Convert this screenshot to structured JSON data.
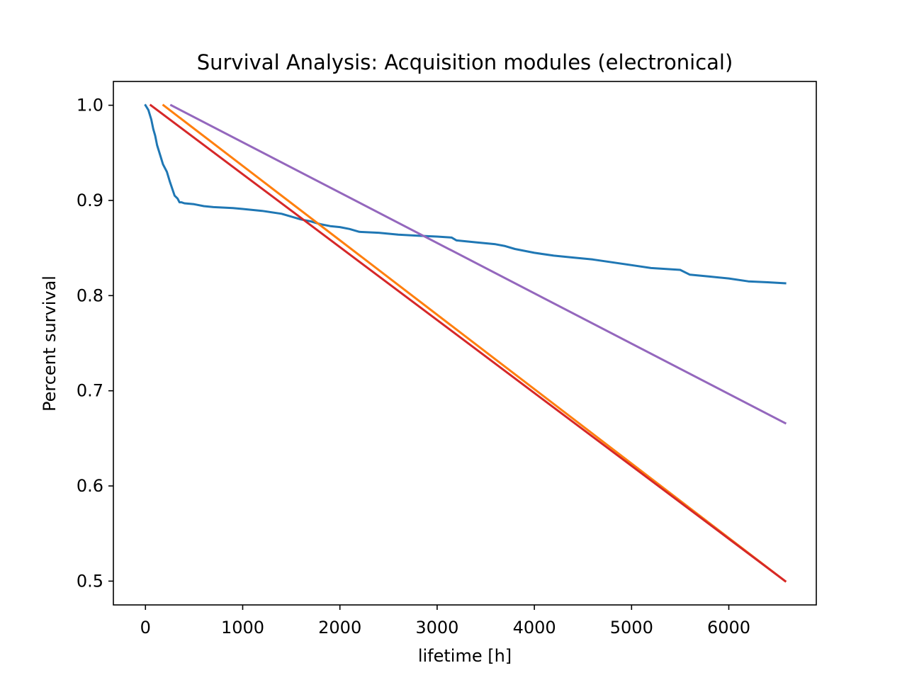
{
  "chart_data": {
    "type": "line",
    "title": "Survival Analysis: Acquisition modules (electronical)",
    "xlabel": "lifetime [h]",
    "ylabel": "Percent survival",
    "xlim": [
      -330,
      6900
    ],
    "ylim": [
      0.475,
      1.025
    ],
    "xticks": [
      0,
      1000,
      2000,
      3000,
      4000,
      5000,
      6000
    ],
    "xtick_labels": [
      "0",
      "1000",
      "2000",
      "3000",
      "4000",
      "5000",
      "6000"
    ],
    "yticks": [
      0.5,
      0.6,
      0.7,
      0.8,
      0.9,
      1.0
    ],
    "ytick_labels": [
      "0.5",
      "0.6",
      "0.7",
      "0.8",
      "0.9",
      "1.0"
    ],
    "grid": false,
    "legend": "none",
    "series": [
      {
        "color": "#1f77b4",
        "x": [
          0,
          30,
          60,
          80,
          100,
          120,
          150,
          180,
          220,
          250,
          300,
          330,
          350,
          370,
          400,
          500,
          600,
          700,
          900,
          1000,
          1200,
          1400,
          1500,
          1600,
          1700,
          1800,
          1900,
          2000,
          2100,
          2200,
          2400,
          2600,
          2800,
          3000,
          3150,
          3200,
          3400,
          3600,
          3700,
          3800,
          4000,
          4200,
          4400,
          4600,
          4800,
          5000,
          5200,
          5500,
          5600,
          5800,
          6000,
          6200,
          6400,
          6580
        ],
        "y": [
          1.0,
          0.995,
          0.985,
          0.975,
          0.968,
          0.958,
          0.948,
          0.938,
          0.93,
          0.92,
          0.905,
          0.902,
          0.898,
          0.898,
          0.897,
          0.896,
          0.894,
          0.893,
          0.892,
          0.891,
          0.889,
          0.886,
          0.883,
          0.88,
          0.878,
          0.875,
          0.873,
          0.872,
          0.87,
          0.867,
          0.866,
          0.864,
          0.863,
          0.862,
          0.861,
          0.858,
          0.856,
          0.854,
          0.852,
          0.849,
          0.845,
          0.842,
          0.84,
          0.838,
          0.835,
          0.832,
          0.829,
          0.827,
          0.822,
          0.82,
          0.818,
          0.815,
          0.814,
          0.813
        ]
      },
      {
        "color": "#ff7f0e",
        "x": [
          185,
          6580
        ],
        "y": [
          1.0,
          0.5
        ]
      },
      {
        "color": "#d62728",
        "x": [
          55,
          6580
        ],
        "y": [
          1.0,
          0.5
        ]
      },
      {
        "color": "#9467bd",
        "x": [
          265,
          6580
        ],
        "y": [
          1.0,
          0.666
        ]
      }
    ]
  }
}
